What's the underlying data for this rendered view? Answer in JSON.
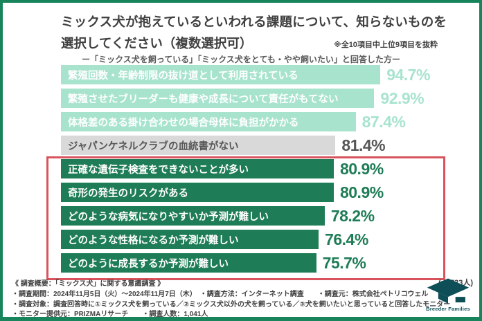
{
  "header": {
    "title_line1": "ミックス犬が抱えているといわれる課題について、知らないものを",
    "title_line2": "選択してください（複数選択可）",
    "note": "※全10項目中上位9項目を抜粋",
    "subtitle": "ー「ミックス犬を飼っている」「ミックス犬をとても・やや飼いたい」と回答した方ー"
  },
  "chart_data": {
    "type": "bar",
    "orientation": "horizontal",
    "title": "ミックス犬が抱えているといわれる課題について、知らないものを選択してください（複数選択可）",
    "subtitle": "ー「ミックス犬を飼っている」「ミックス犬をとても・やや飼いたい」と回答した方ー",
    "categories": [
      "繁殖回数・年齢制限の抜け道として利用されている",
      "繁殖させたブリーダーも健康や成長について責任がもてない",
      "体格差のある掛け合わせの場合母体に負担がかかる",
      "ジャパンケネルクラブの血統書がない",
      "正確な遺伝子検査をできないことが多い",
      "奇形の発生のリスクがある",
      "どのような病気になりやすいか予測が難しい",
      "どのような性格になるか予測が難しい",
      "どのように成長するか予測が難しい"
    ],
    "values": [
      94.7,
      92.9,
      87.4,
      81.4,
      80.9,
      80.9,
      78.2,
      76.4,
      75.7
    ],
    "value_labels": [
      "94.7%",
      "92.9%",
      "87.4%",
      "81.4%",
      "80.9%",
      "80.9%",
      "78.2%",
      "76.4%",
      "75.7%"
    ],
    "bar_styles": [
      "mint",
      "mint",
      "mint",
      "gray",
      "green",
      "green",
      "green",
      "green",
      "green"
    ],
    "highlighted_rows": [
      5,
      6,
      7,
      8,
      9
    ],
    "xlim": [
      0,
      100
    ],
    "grid": false,
    "legend": false,
    "sample_note": "(n=733人)"
  },
  "footer": {
    "heading": "《 調査概要：「ミックス犬」に関する意識調査 》",
    "line2": "・調査期間：2024年11月5日（火）～2024年11月7日（木）　・調査方法：インターネット調査　　・調査元：株式会社ペトリコウェル",
    "line3": "・調査対象：調査回答時に①ミックス犬を飼っている／②ミックス犬以外の犬を飼っている／③犬を飼いたいと思っていると回答したモニター",
    "line4": "・モニター提供元：PRIZMAリサーチ　　・調査人数：1,041人"
  },
  "logo": {
    "text": "Breeder Families"
  },
  "colors": {
    "frame_green": "#17845c",
    "bar_mint": "#a8e4cd",
    "bar_gray": "#d9d9d9",
    "bar_green": "#1e7c56",
    "highlight_red": "#d8535b",
    "logo_teal": "#0d4e57",
    "text_dark": "#3f3f3f"
  }
}
